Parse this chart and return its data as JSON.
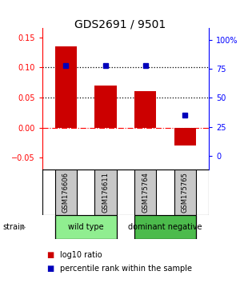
{
  "title": "GDS2691 / 9501",
  "samples": [
    "GSM176606",
    "GSM176611",
    "GSM175764",
    "GSM175765"
  ],
  "log10_ratio": [
    0.135,
    0.07,
    0.06,
    -0.03
  ],
  "percentile_rank": [
    78,
    78,
    78,
    35
  ],
  "groups": [
    {
      "label": "wild type",
      "samples": [
        0,
        1
      ],
      "color": "#90EE90"
    },
    {
      "label": "dominant negative",
      "samples": [
        2,
        3
      ],
      "color": "#4CBB4C"
    }
  ],
  "bar_color": "#CC0000",
  "dot_color": "#0000BB",
  "ylim_left": [
    -0.07,
    0.165
  ],
  "ylim_right": [
    -12,
    110
  ],
  "yticks_left": [
    -0.05,
    0,
    0.05,
    0.1,
    0.15
  ],
  "yticks_right": [
    0,
    25,
    50,
    75,
    100
  ],
  "ytick_labels_right": [
    "0",
    "25",
    "50",
    "75",
    "100%"
  ],
  "hlines": [
    0.05,
    0.1
  ],
  "background_color": "#ffffff",
  "sample_box_color": "#c8c8c8",
  "bar_width": 0.55
}
